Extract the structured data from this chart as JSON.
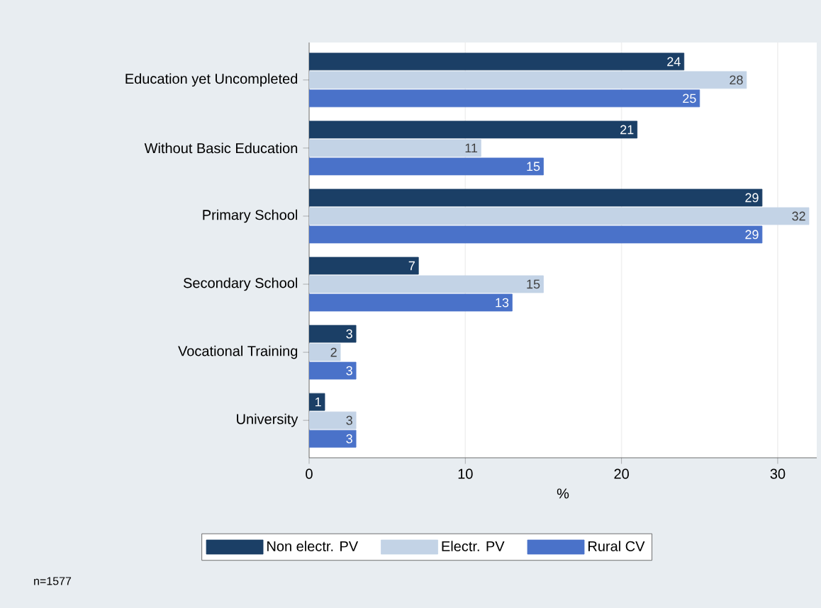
{
  "chart_data": {
    "type": "bar",
    "orientation": "horizontal",
    "categories": [
      "Education yet Uncompleted",
      "Without Basic Education",
      "Primary School",
      "Secondary School",
      "Vocational Training",
      "University"
    ],
    "series": [
      {
        "name": "Non  electr. PV",
        "color": "#1b3f66",
        "values": [
          24,
          21,
          29,
          7,
          3,
          1
        ]
      },
      {
        "name": "Electr. PV",
        "color": "#c3d3e6",
        "values": [
          28,
          11,
          32,
          15,
          2,
          3
        ]
      },
      {
        "name": "Rural CV",
        "color": "#4a72c9",
        "values": [
          25,
          15,
          29,
          13,
          3,
          3
        ]
      }
    ],
    "xlabel": "%",
    "xlim": [
      0,
      32.5
    ],
    "xticks": [
      0,
      10,
      20,
      30
    ],
    "grid": "x",
    "legend": "bottom",
    "data_labels": true,
    "annotations": [
      "n=1577"
    ]
  }
}
